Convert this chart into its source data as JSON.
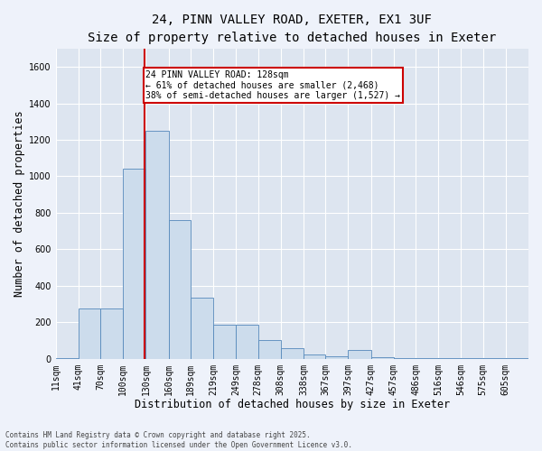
{
  "title_line1": "24, PINN VALLEY ROAD, EXETER, EX1 3UF",
  "title_line2": "Size of property relative to detached houses in Exeter",
  "xlabel": "Distribution of detached houses by size in Exeter",
  "ylabel": "Number of detached properties",
  "bar_color": "#ccdcec",
  "bar_edge_color": "#5588bb",
  "background_color": "#dde5f0",
  "grid_color": "#ffffff",
  "annotation_text": "24 PINN VALLEY ROAD: 128sqm\n← 61% of detached houses are smaller (2,468)\n38% of semi-detached houses are larger (1,527) →",
  "vline_x": 128,
  "vline_color": "#cc0000",
  "annotation_box_edge": "#cc0000",
  "footer_line1": "Contains HM Land Registry data © Crown copyright and database right 2025.",
  "footer_line2": "Contains public sector information licensed under the Open Government Licence v3.0.",
  "categories": [
    "11sqm",
    "41sqm",
    "70sqm",
    "100sqm",
    "130sqm",
    "160sqm",
    "189sqm",
    "219sqm",
    "249sqm",
    "278sqm",
    "308sqm",
    "338sqm",
    "367sqm",
    "397sqm",
    "427sqm",
    "457sqm",
    "486sqm",
    "516sqm",
    "546sqm",
    "575sqm",
    "605sqm"
  ],
  "bin_edges": [
    11,
    41,
    70,
    100,
    130,
    160,
    189,
    219,
    249,
    278,
    308,
    338,
    367,
    397,
    427,
    457,
    486,
    516,
    546,
    575,
    605,
    635
  ],
  "values": [
    5,
    275,
    275,
    1040,
    1250,
    760,
    335,
    185,
    185,
    100,
    58,
    25,
    15,
    50,
    10,
    5,
    3,
    3,
    2,
    2,
    2
  ],
  "ylim": [
    0,
    1700
  ],
  "yticks": [
    0,
    200,
    400,
    600,
    800,
    1000,
    1200,
    1400,
    1600
  ],
  "fig_width": 6.0,
  "fig_height": 5.0,
  "title_fontsize": 10,
  "subtitle_fontsize": 9,
  "tick_fontsize": 7,
  "label_fontsize": 8.5,
  "footer_fontsize": 5.5
}
